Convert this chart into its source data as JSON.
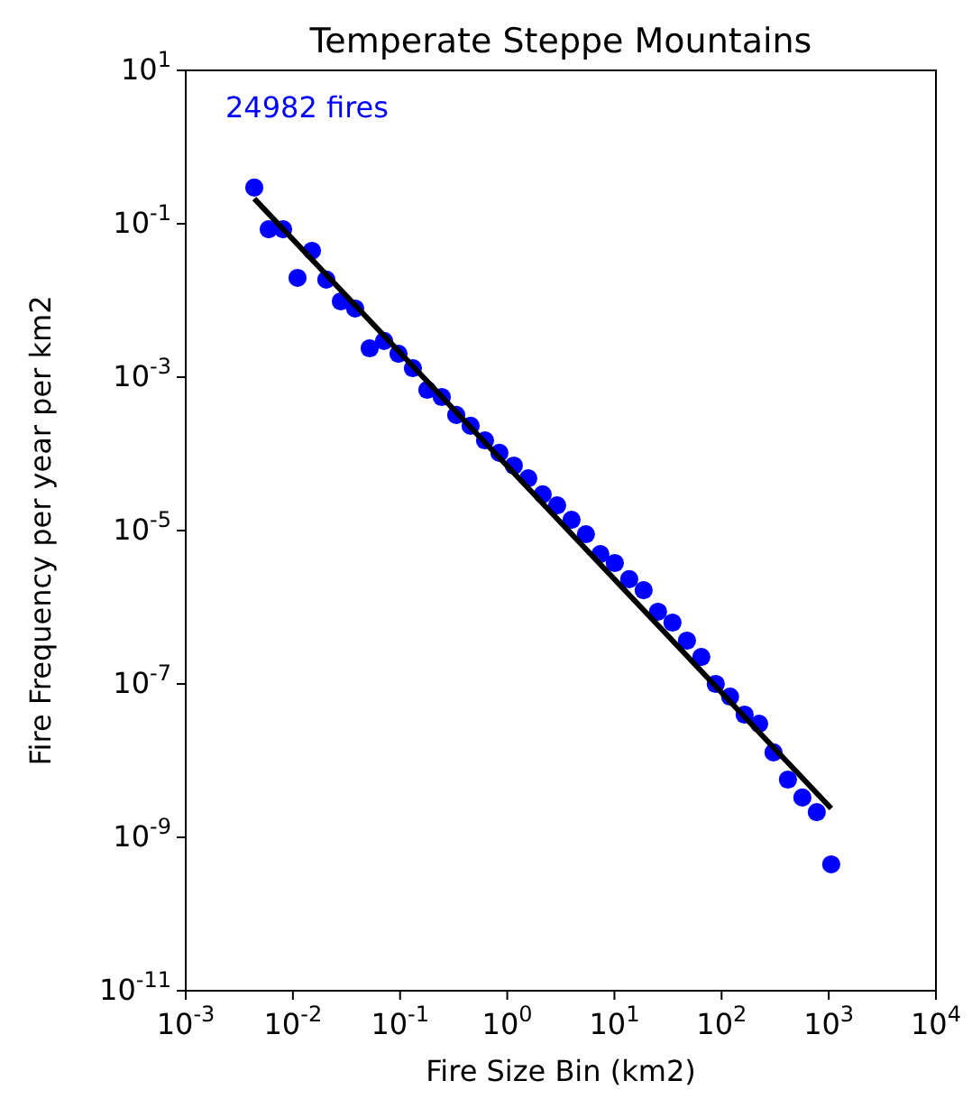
{
  "chart_data": {
    "type": "scatter",
    "title": "Temperate Steppe Mountains",
    "xlabel": "Fire Size Bin (km2)",
    "ylabel": "Fire Frequency per year per km2",
    "log": "xy",
    "grid": false,
    "annotations": [
      "24982 fires"
    ],
    "xlim": [
      0.001,
      10000
    ],
    "ylim": [
      1e-11,
      10
    ],
    "xticks": [
      {
        "value": 0.001,
        "label": "10$^{-3}$"
      },
      {
        "value": 0.01,
        "label": "10$^{-2}$"
      },
      {
        "value": 0.1,
        "label": "10$^{-1}$"
      },
      {
        "value": 1,
        "label": "10$^{0}$"
      },
      {
        "value": 10,
        "label": "10$^{1}$"
      },
      {
        "value": 100,
        "label": "10$^{2}$"
      },
      {
        "value": 1000,
        "label": "10$^{3}$"
      },
      {
        "value": 10000,
        "label": "10$^{4}$"
      }
    ],
    "yticks": [
      {
        "value": 1e-11,
        "label": "10$^{-11}$"
      },
      {
        "value": 1e-09,
        "label": "10$^{-9}$"
      },
      {
        "value": 1e-07,
        "label": "10$^{-7}$"
      },
      {
        "value": 1e-05,
        "label": "10$^{-5}$"
      },
      {
        "value": 0.001,
        "label": "10$^{-3}$"
      },
      {
        "value": 0.1,
        "label": "10$^{-1}$"
      },
      {
        "value": 10,
        "label": "10$^{1}$"
      }
    ],
    "series": [
      {
        "type": "scatter",
        "marker": "circle",
        "color": "#0000ff",
        "x": [
          0.00436,
          0.00594,
          0.0081,
          0.01104,
          0.01505,
          0.0205,
          0.028,
          0.0381,
          0.052,
          0.0709,
          0.0966,
          0.1317,
          0.1795,
          0.245,
          0.334,
          0.455,
          0.62,
          0.845,
          1.152,
          1.571,
          2.14,
          2.92,
          3.98,
          5.42,
          7.39,
          10.08,
          13.74,
          18.73,
          25.5,
          34.8,
          47.5,
          64.7,
          88.2,
          120,
          164,
          224,
          305,
          416,
          567,
          773,
          1054
        ],
        "values": [
          0.296,
          0.0849,
          0.0849,
          0.0197,
          0.0444,
          0.0187,
          0.00973,
          0.00784,
          0.00238,
          0.00296,
          0.00202,
          0.00131,
          0.000684,
          0.000551,
          0.000321,
          0.000232,
          0.00015,
          0.000103,
          7.03e-05,
          4.81e-05,
          2.96e-05,
          2.13e-05,
          1.38e-05,
          8.97e-06,
          4.94e-06,
          3.77e-06,
          2.32e-06,
          1.67e-06,
          8.74e-07,
          6.31e-07,
          3.67e-07,
          2.25e-07,
          1e-07,
          6.84e-08,
          3.98e-08,
          3.03e-08,
          1.28e-08,
          5.66e-09,
          3.3e-09,
          2.13e-09,
          4.44e-10
        ]
      },
      {
        "type": "line",
        "marker": "none",
        "line_style": "solid",
        "color": "#000000",
        "x": [
          0.00436,
          1054
        ],
        "values": [
          0.213,
          2.38e-09
        ]
      }
    ]
  }
}
